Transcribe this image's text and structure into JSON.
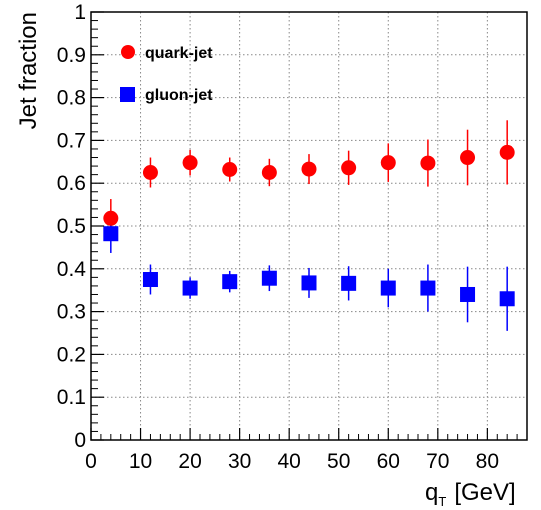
{
  "chart_data": {
    "type": "scatter",
    "title": "",
    "xlabel": "q",
    "xlabel_subscript": "T",
    "xlabel_unit": "[GeV]",
    "ylabel": "Jet fraction",
    "xlim": [
      0,
      88
    ],
    "ylim": [
      0,
      1
    ],
    "x_ticks": [
      0,
      10,
      20,
      30,
      40,
      50,
      60,
      70,
      80
    ],
    "y_ticks": [
      0,
      0.1,
      0.2,
      0.3,
      0.4,
      0.5,
      0.6,
      0.7,
      0.8,
      0.9,
      1
    ],
    "x_tick_labels": [
      "0",
      "10",
      "20",
      "30",
      "40",
      "50",
      "60",
      "70",
      "80"
    ],
    "y_tick_labels": [
      "0",
      "0.1",
      "0.2",
      "0.3",
      "0.4",
      "0.5",
      "0.6",
      "0.7",
      "0.8",
      "0.9",
      "1"
    ],
    "grid": true,
    "legend_position": "top-left",
    "series": [
      {
        "name": "quark-jet",
        "marker": "circle",
        "color": "#ff0000",
        "x": [
          4,
          12,
          20,
          28,
          36,
          44,
          52,
          60,
          68,
          76,
          84
        ],
        "y": [
          0.518,
          0.625,
          0.648,
          0.632,
          0.625,
          0.633,
          0.636,
          0.648,
          0.647,
          0.66,
          0.672
        ],
        "err": [
          0.045,
          0.035,
          0.03,
          0.028,
          0.032,
          0.035,
          0.04,
          0.045,
          0.055,
          0.065,
          0.075
        ]
      },
      {
        "name": "gluon-jet",
        "marker": "square",
        "color": "#0000ff",
        "x": [
          4,
          12,
          20,
          28,
          36,
          44,
          52,
          60,
          68,
          76,
          84
        ],
        "y": [
          0.482,
          0.375,
          0.355,
          0.37,
          0.378,
          0.367,
          0.366,
          0.355,
          0.355,
          0.34,
          0.33
        ],
        "err": [
          0.045,
          0.035,
          0.025,
          0.025,
          0.03,
          0.035,
          0.04,
          0.045,
          0.055,
          0.065,
          0.075
        ]
      }
    ]
  }
}
